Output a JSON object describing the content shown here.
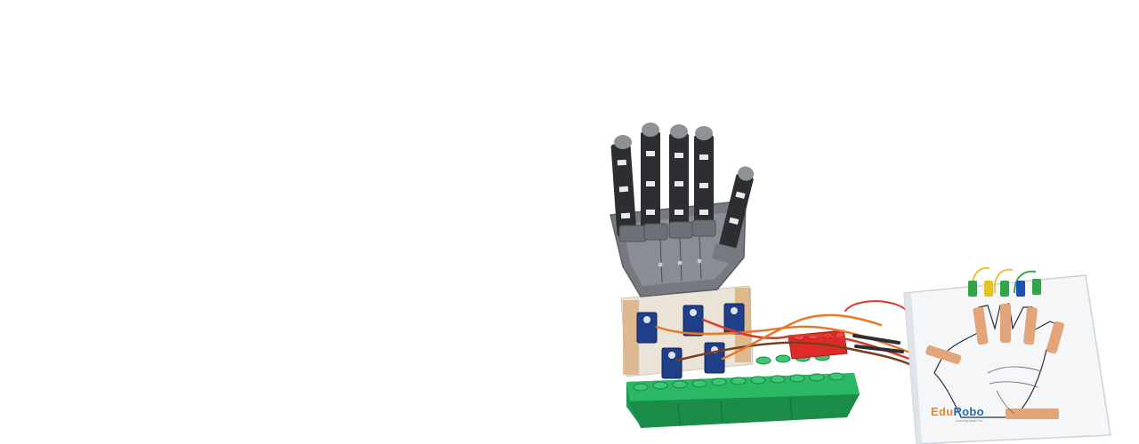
{
  "image": {
    "alt": "Robotic hand kit with servo motors on green building blocks connected by wires to a paper hand control sheet"
  },
  "brand": {
    "name_part1": "Edu",
    "name_part2": "Robo",
    "tagline": "Learning Made Fun",
    "colors": {
      "orange": "#e8892a",
      "blue": "#1e6fb8"
    }
  },
  "colors": {
    "hand_plastic": "#76797e",
    "finger_black": "#2c2e31",
    "fingertip_gray": "#8e9196",
    "block_green": "#23a55a",
    "block_red": "#e02a2a",
    "servo_blue": "#1f3f8a",
    "copper_tape": "#e2a57a",
    "wire_orange": "#e8782a",
    "wire_red": "#d63a2a",
    "wire_brown": "#7a3e1e"
  }
}
